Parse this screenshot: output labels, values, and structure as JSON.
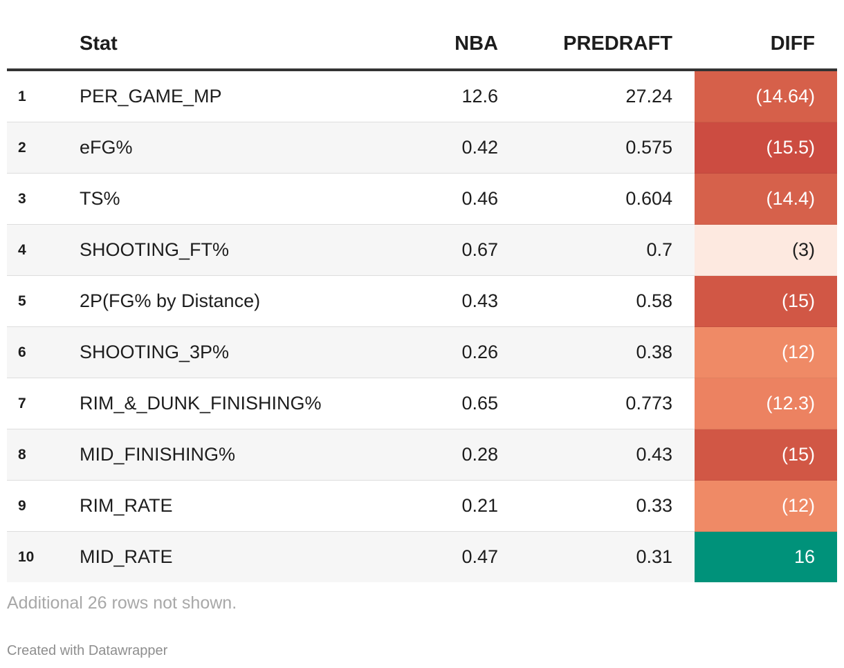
{
  "chart_data": {
    "type": "table",
    "columns": {
      "rank": "",
      "stat": "Stat",
      "nba": "NBA",
      "predraft": "PREDRAFT",
      "diff": "DIFF"
    },
    "rows": [
      {
        "rank": "1",
        "stat": "PER_GAME_MP",
        "nba": "12.6",
        "predraft": "27.24",
        "diff": "(14.64)",
        "diff_value": -14.64,
        "diff_color": "#d6604a",
        "diff_text_color": "#ffffff"
      },
      {
        "rank": "2",
        "stat": "eFG%",
        "nba": "0.42",
        "predraft": "0.575",
        "diff": "(15.5)",
        "diff_value": -15.5,
        "diff_color": "#cc4c41",
        "diff_text_color": "#ffffff"
      },
      {
        "rank": "3",
        "stat": "TS%",
        "nba": "0.46",
        "predraft": "0.604",
        "diff": "(14.4)",
        "diff_value": -14.4,
        "diff_color": "#d6614b",
        "diff_text_color": "#ffffff"
      },
      {
        "rank": "4",
        "stat": "SHOOTING_FT%",
        "nba": "0.67",
        "predraft": "0.7",
        "diff": "(3)",
        "diff_value": -3,
        "diff_color": "#fde9e0",
        "diff_text_color": "#1d1d1d"
      },
      {
        "rank": "5",
        "stat": "2P(FG% by Distance)",
        "nba": "0.43",
        "predraft": "0.58",
        "diff": "(15)",
        "diff_value": -15,
        "diff_color": "#d15745",
        "diff_text_color": "#ffffff"
      },
      {
        "rank": "6",
        "stat": "SHOOTING_3P%",
        "nba": "0.26",
        "predraft": "0.38",
        "diff": "(12)",
        "diff_value": -12,
        "diff_color": "#ef8a66",
        "diff_text_color": "#ffffff"
      },
      {
        "rank": "7",
        "stat": "RIM_&_DUNK_FINISHING%",
        "nba": "0.65",
        "predraft": "0.773",
        "diff": "(12.3)",
        "diff_value": -12.3,
        "diff_color": "#ec8261",
        "diff_text_color": "#ffffff"
      },
      {
        "rank": "8",
        "stat": "MID_FINISHING%",
        "nba": "0.28",
        "predraft": "0.43",
        "diff": "(15)",
        "diff_value": -15,
        "diff_color": "#d15745",
        "diff_text_color": "#ffffff"
      },
      {
        "rank": "9",
        "stat": "RIM_RATE",
        "nba": "0.21",
        "predraft": "0.33",
        "diff": "(12)",
        "diff_value": -12,
        "diff_color": "#ef8a66",
        "diff_text_color": "#ffffff"
      },
      {
        "rank": "10",
        "stat": "MID_RATE",
        "nba": "0.47",
        "predraft": "0.31",
        "diff": "16",
        "diff_value": 16,
        "diff_color": "#00927a",
        "diff_text_color": "#ffffff"
      }
    ]
  },
  "notes": "Additional 26 rows not shown.",
  "credit": "Created with Datawrapper"
}
